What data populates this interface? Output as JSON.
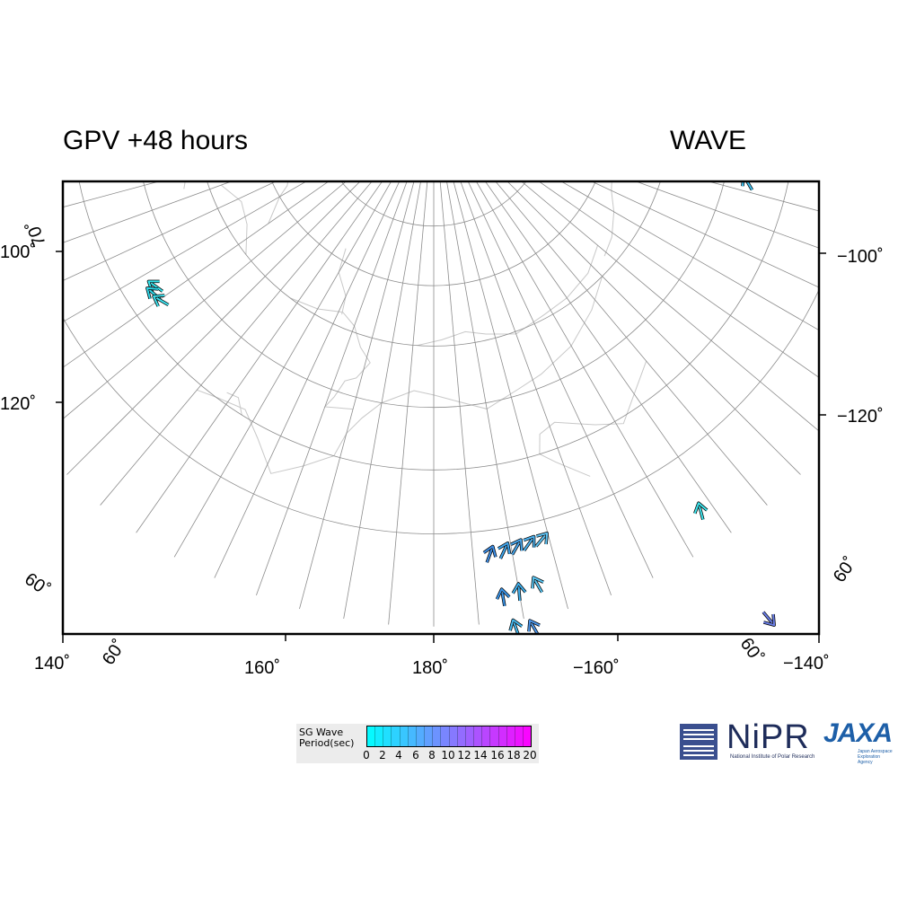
{
  "header": {
    "left_title": "GPV +48 hours",
    "right_title": "WAVE"
  },
  "map": {
    "projection": "polar stereographic",
    "bottom_longitude_labels": [
      "140˚",
      "160˚",
      "180˚",
      "−160˚",
      "−140˚"
    ],
    "left_longitude_labels": [
      "100˚",
      "120˚"
    ],
    "right_longitude_labels": [
      "−100˚",
      "−120˚"
    ],
    "latitude_labels": [
      "70˚",
      "60˚",
      "60˚",
      "60˚",
      "60˚"
    ],
    "colors": {
      "graticule": "#8c8c8c",
      "coastline": "#c8c8c8",
      "frame": "#000000"
    },
    "wave_arrows": [
      {
        "region": "west",
        "color": "#35e6ee",
        "heading_deg": 125
      },
      {
        "region": "west",
        "color": "#2fd6e8",
        "heading_deg": 130
      },
      {
        "region": "west",
        "color": "#3fe2ef",
        "heading_deg": 120
      },
      {
        "region": "bering",
        "color": "#3e8fe8",
        "heading_deg": 200
      },
      {
        "region": "bering",
        "color": "#3fa5ec",
        "heading_deg": 205
      },
      {
        "region": "bering",
        "color": "#4aa8ee",
        "heading_deg": 210
      },
      {
        "region": "bering",
        "color": "#4eb3f0",
        "heading_deg": 215
      },
      {
        "region": "bering",
        "color": "#5ec3f3",
        "heading_deg": 220
      },
      {
        "region": "bering",
        "color": "#3a95ea",
        "heading_deg": 170
      },
      {
        "region": "bering",
        "color": "#3fb0ee",
        "heading_deg": 175
      },
      {
        "region": "bering",
        "color": "#59c7f4",
        "heading_deg": 150
      },
      {
        "region": "bering",
        "color": "#46b9f0",
        "heading_deg": 160
      },
      {
        "region": "bering",
        "color": "#4e98ec",
        "heading_deg": 150
      },
      {
        "region": "gulf",
        "color": "#3ee6ee",
        "heading_deg": 165
      },
      {
        "region": "gulf",
        "color": "#6a7ee6",
        "heading_deg": 320
      },
      {
        "region": "north",
        "color": "#3fc0ee",
        "heading_deg": 150
      }
    ]
  },
  "legend": {
    "title": "SG Wave\nPeriod(sec)",
    "min": 0,
    "max": 20,
    "step": 2,
    "tick_labels": [
      "0",
      "2",
      "4",
      "6",
      "8",
      "10",
      "12",
      "14",
      "16",
      "18",
      "20"
    ],
    "color_low": "#00ffff",
    "color_high": "#ff00ff"
  },
  "logos": {
    "nipr": {
      "name": "NiPR",
      "subtitle": "National Institute of Polar Research"
    },
    "jaxa": {
      "name": "JAXA",
      "subtitle": "Japan Aerospace Exploration Agency"
    }
  }
}
